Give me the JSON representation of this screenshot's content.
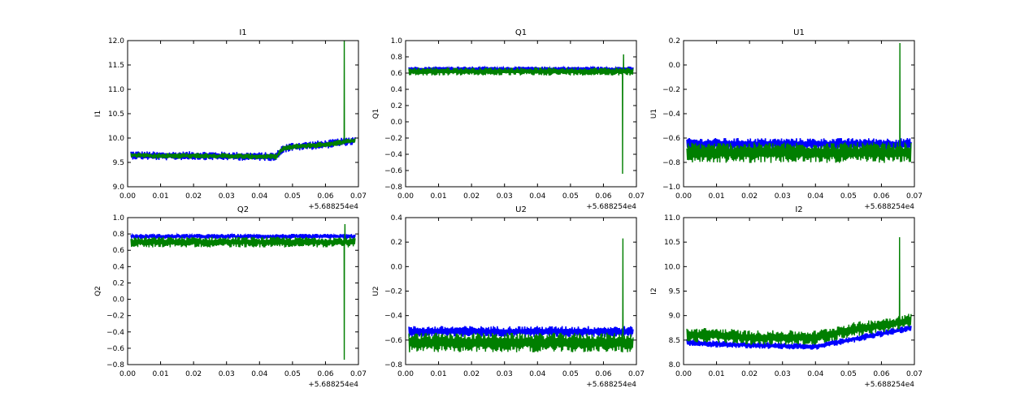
{
  "chart_data": [
    {
      "type": "line",
      "title": "I1",
      "ylabel": "I1",
      "xlim": [
        0.0,
        0.07
      ],
      "ylim": [
        9.0,
        12.0
      ],
      "x_ticks": [
        "0.00",
        "0.01",
        "0.02",
        "0.03",
        "0.04",
        "0.05",
        "0.06",
        "0.07"
      ],
      "y_ticks": [
        "9.0",
        "9.5",
        "10.0",
        "10.5",
        "11.0",
        "11.5",
        "12.0"
      ],
      "x_offset_label": "+5.688254e4",
      "series": [
        {
          "color": "#0000ff",
          "x": [
            0.001,
            0.01,
            0.02,
            0.03,
            0.04,
            0.045,
            0.047,
            0.05,
            0.06,
            0.069
          ],
          "y": [
            9.65,
            9.63,
            9.64,
            9.63,
            9.62,
            9.62,
            9.78,
            9.82,
            9.87,
            9.95
          ],
          "band": 0.18
        },
        {
          "color": "#007f00",
          "x": [
            0.001,
            0.01,
            0.02,
            0.03,
            0.04,
            0.045,
            0.047,
            0.05,
            0.06,
            0.069
          ],
          "y": [
            9.65,
            9.63,
            9.64,
            9.63,
            9.62,
            9.62,
            9.78,
            9.82,
            9.87,
            9.95
          ],
          "band": 0.12,
          "spikes": [
            {
              "x": 0.0657,
              "y": 12.0
            },
            {
              "x": 0.0661,
              "y": 9.9
            }
          ]
        }
      ]
    },
    {
      "type": "line",
      "title": "Q1",
      "ylabel": "Q1",
      "xlim": [
        0.0,
        0.07
      ],
      "ylim": [
        -0.8,
        1.0
      ],
      "x_ticks": [
        "0.00",
        "0.01",
        "0.02",
        "0.03",
        "0.04",
        "0.05",
        "0.06",
        "0.07"
      ],
      "y_ticks": [
        "−0.8",
        "−0.6",
        "−0.4",
        "−0.2",
        "0.0",
        "0.2",
        "0.4",
        "0.6",
        "0.8",
        "1.0"
      ],
      "x_offset_label": "+5.688254e4",
      "series": [
        {
          "color": "#0000ff",
          "x": [
            0.001,
            0.069
          ],
          "y": [
            0.65,
            0.65
          ],
          "band": 0.06
        },
        {
          "color": "#007f00",
          "x": [
            0.001,
            0.069
          ],
          "y": [
            0.62,
            0.62
          ],
          "band": 0.1,
          "spikes": [
            {
              "x": 0.0658,
              "y": -0.64
            },
            {
              "x": 0.0661,
              "y": 0.83
            }
          ]
        }
      ]
    },
    {
      "type": "line",
      "title": "U1",
      "ylabel": "U1",
      "xlim": [
        0.0,
        0.07
      ],
      "ylim": [
        -1.0,
        0.2
      ],
      "x_ticks": [
        "0.00",
        "0.01",
        "0.02",
        "0.03",
        "0.04",
        "0.05",
        "0.06",
        "0.07"
      ],
      "y_ticks": [
        "−1.0",
        "−0.8",
        "−0.6",
        "−0.4",
        "−0.2",
        "0.0",
        "0.2"
      ],
      "x_offset_label": "+5.688254e4",
      "series": [
        {
          "color": "#0000ff",
          "x": [
            0.001,
            0.069
          ],
          "y": [
            -0.65,
            -0.65
          ],
          "band": 0.1
        },
        {
          "color": "#007f00",
          "x": [
            0.001,
            0.069
          ],
          "y": [
            -0.72,
            -0.72
          ],
          "band": 0.17,
          "spikes": [
            {
              "x": 0.0656,
              "y": 0.18
            }
          ]
        }
      ]
    },
    {
      "type": "line",
      "title": "Q2",
      "ylabel": "Q2",
      "xlim": [
        0.0,
        0.07
      ],
      "ylim": [
        -0.8,
        1.0
      ],
      "x_ticks": [
        "0.00",
        "0.01",
        "0.02",
        "0.03",
        "0.04",
        "0.05",
        "0.06",
        "0.07"
      ],
      "y_ticks": [
        "−0.8",
        "−0.6",
        "−0.4",
        "−0.2",
        "0.0",
        "0.2",
        "0.4",
        "0.6",
        "0.8",
        "1.0"
      ],
      "x_offset_label": "+5.688254e4",
      "series": [
        {
          "color": "#0000ff",
          "x": [
            0.001,
            0.069
          ],
          "y": [
            0.77,
            0.77
          ],
          "band": 0.06
        },
        {
          "color": "#007f00",
          "x": [
            0.001,
            0.069
          ],
          "y": [
            0.7,
            0.7
          ],
          "band": 0.13,
          "spikes": [
            {
              "x": 0.0657,
              "y": -0.74
            },
            {
              "x": 0.0659,
              "y": 0.92
            }
          ]
        }
      ]
    },
    {
      "type": "line",
      "title": "U2",
      "ylabel": "U2",
      "xlim": [
        0.0,
        0.07
      ],
      "ylim": [
        -0.8,
        0.4
      ],
      "x_ticks": [
        "0.00",
        "0.01",
        "0.02",
        "0.03",
        "0.04",
        "0.05",
        "0.06",
        "0.07"
      ],
      "y_ticks": [
        "−0.8",
        "−0.6",
        "−0.4",
        "−0.2",
        "0.0",
        "0.2",
        "0.4"
      ],
      "x_offset_label": "+5.688254e4",
      "series": [
        {
          "color": "#0000ff",
          "x": [
            0.001,
            0.069
          ],
          "y": [
            -0.53,
            -0.53
          ],
          "band": 0.09
        },
        {
          "color": "#007f00",
          "x": [
            0.001,
            0.069
          ],
          "y": [
            -0.62,
            -0.62
          ],
          "band": 0.16,
          "spikes": [
            {
              "x": 0.0659,
              "y": 0.23
            }
          ]
        }
      ]
    },
    {
      "type": "line",
      "title": "I2",
      "ylabel": "I2",
      "xlim": [
        0.0,
        0.07
      ],
      "ylim": [
        8.0,
        11.0
      ],
      "x_ticks": [
        "0.00",
        "0.01",
        "0.02",
        "0.03",
        "0.04",
        "0.05",
        "0.06",
        "0.07"
      ],
      "y_ticks": [
        "8.0",
        "8.5",
        "9.0",
        "9.5",
        "10.0",
        "10.5",
        "11.0"
      ],
      "x_offset_label": "+5.688254e4",
      "series": [
        {
          "color": "#0000ff",
          "x": [
            0.001,
            0.01,
            0.02,
            0.03,
            0.04,
            0.05,
            0.06,
            0.069
          ],
          "y": [
            8.45,
            8.42,
            8.4,
            8.38,
            8.37,
            8.5,
            8.63,
            8.75
          ],
          "band": 0.14
        },
        {
          "color": "#007f00",
          "x": [
            0.001,
            0.01,
            0.02,
            0.03,
            0.04,
            0.05,
            0.06,
            0.069
          ],
          "y": [
            8.6,
            8.6,
            8.55,
            8.55,
            8.55,
            8.7,
            8.8,
            8.9
          ],
          "band": 0.3,
          "spikes": [
            {
              "x": 0.0655,
              "y": 10.6
            }
          ]
        }
      ]
    }
  ]
}
